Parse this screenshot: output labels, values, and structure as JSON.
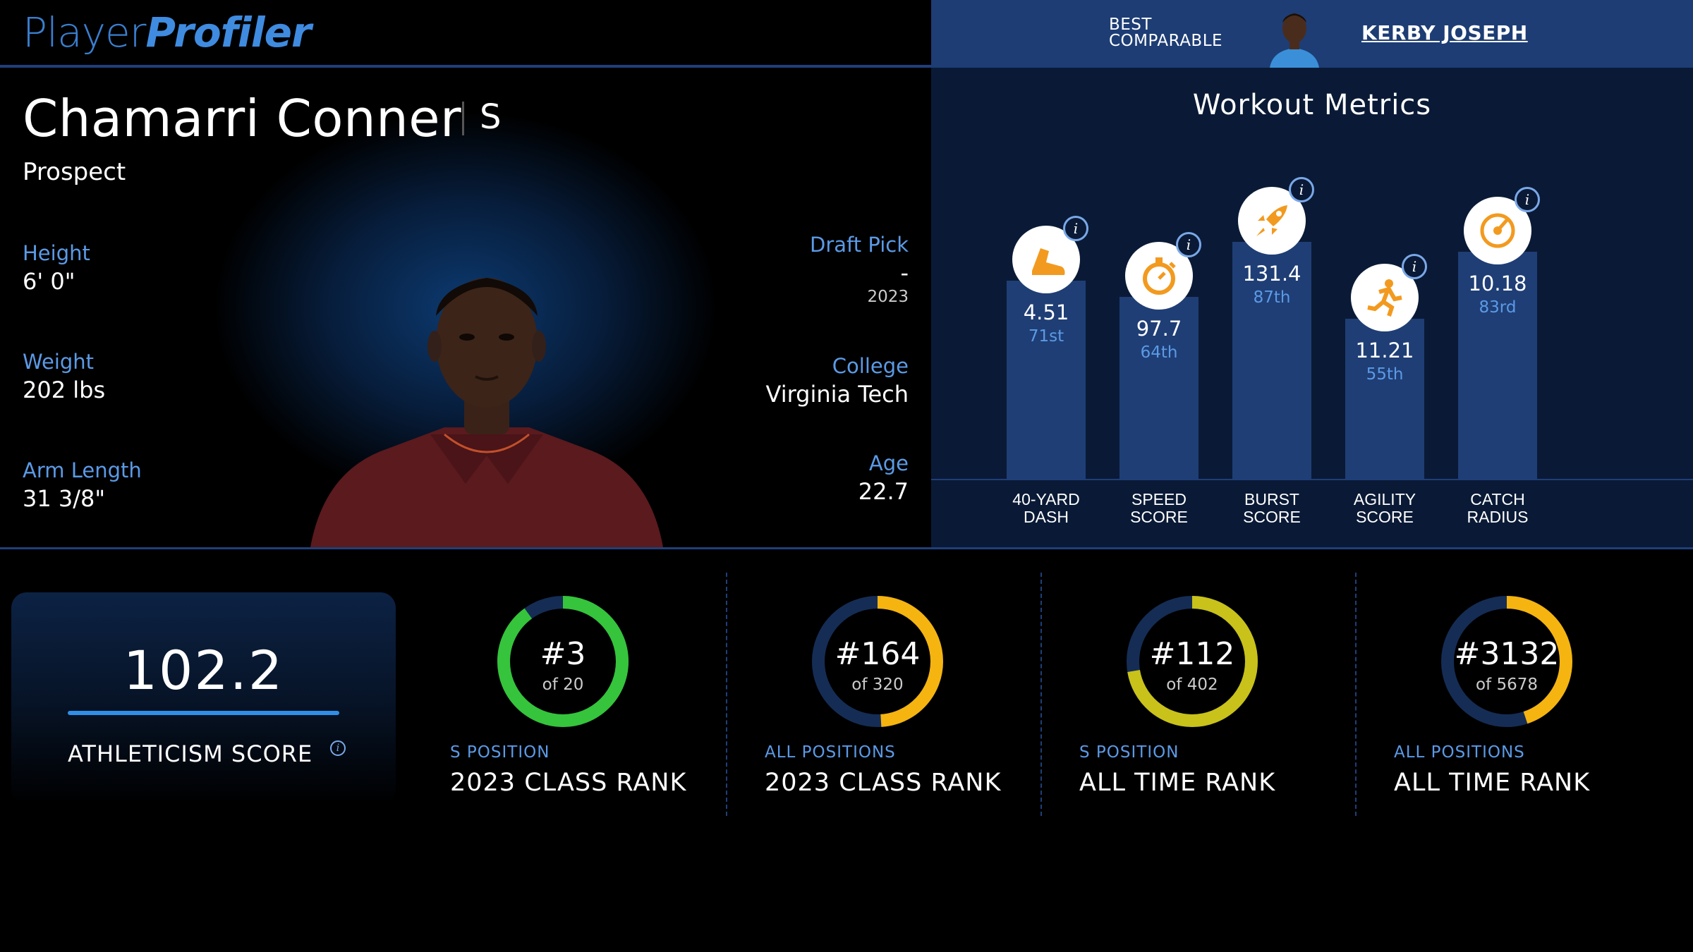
{
  "brand": {
    "part1": "Player",
    "part2": "Profiler"
  },
  "comparable": {
    "label_line1": "BEST",
    "label_line2": "COMPARABLE",
    "name": "KERBY JOSEPH"
  },
  "player": {
    "name": "Chamarri Conner",
    "position": "S",
    "status": "Prospect",
    "height_label": "Height",
    "height": "6' 0\"",
    "weight_label": "Weight",
    "weight": "202 lbs",
    "arm_label": "Arm Length",
    "arm": "31 3/8\"",
    "draft_label": "Draft Pick",
    "draft_pick": "-",
    "draft_year": "2023",
    "college_label": "College",
    "college": "Virginia Tech",
    "age_label": "Age",
    "age": "22.7"
  },
  "metrics": {
    "title": "Workout Metrics",
    "info_glyph": "i",
    "items": [
      {
        "label1": "40-YARD",
        "label2": "DASH",
        "value": "4.51",
        "rank": "71st",
        "percentile": 71,
        "icon": "shoe-icon",
        "icon_color": "#f29a1f"
      },
      {
        "label1": "SPEED",
        "label2": "SCORE",
        "value": "97.7",
        "rank": "64th",
        "percentile": 64,
        "icon": "stopwatch-icon",
        "icon_color": "#f29a1f"
      },
      {
        "label1": "BURST",
        "label2": "SCORE",
        "value": "131.4",
        "rank": "87th",
        "percentile": 87,
        "icon": "rocket-icon",
        "icon_color": "#f29a1f"
      },
      {
        "label1": "AGILITY",
        "label2": "SCORE",
        "value": "11.21",
        "rank": "55th",
        "percentile": 55,
        "icon": "runner-icon",
        "icon_color": "#f29a1f"
      },
      {
        "label1": "CATCH",
        "label2": "RADIUS",
        "value": "10.18",
        "rank": "83rd",
        "percentile": 83,
        "icon": "target-icon",
        "icon_color": "#f29a1f"
      }
    ]
  },
  "athleticism": {
    "value": "102.2",
    "label": "ATHLETICISM SCORE",
    "info_glyph": "i"
  },
  "ranks": [
    {
      "main": "#3",
      "sub": "of 20",
      "rank": 3,
      "total": 20,
      "category": "S POSITION",
      "title": "2023 CLASS RANK",
      "color": "#35c43b"
    },
    {
      "main": "#164",
      "sub": "of 320",
      "rank": 164,
      "total": 320,
      "category": "ALL POSITIONS",
      "title": "2023 CLASS RANK",
      "color": "#f5b40f"
    },
    {
      "main": "#112",
      "sub": "of 402",
      "rank": 112,
      "total": 402,
      "category": "S POSITION",
      "title": "ALL TIME RANK",
      "color": "#c8c21a"
    },
    {
      "main": "#3132",
      "sub": "of 5678",
      "rank": 3132,
      "total": 5678,
      "category": "ALL POSITIONS",
      "title": "ALL TIME RANK",
      "color": "#f5b40f"
    }
  ],
  "colors": {
    "accent": "#3f8be0",
    "panel": "#0a1a36",
    "bar": "#1f3e75",
    "ring_track": "#152d55"
  }
}
